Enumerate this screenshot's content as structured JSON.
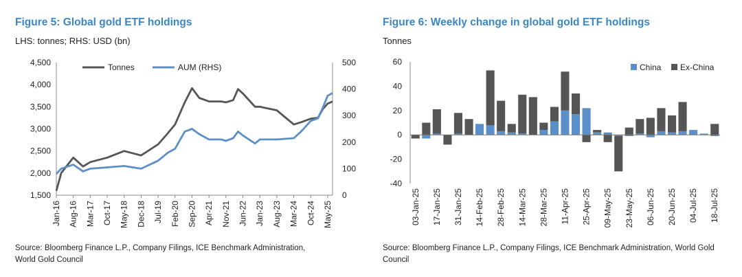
{
  "colors": {
    "title": "#3a87c8",
    "tonnes": "#555555",
    "aum": "#5b8fc9",
    "china": "#5b8fc9",
    "exchina": "#555555",
    "axis": "#888888"
  },
  "figure5": {
    "title": "Figure 5: Global gold ETF holdings",
    "subtitle": "LHS: tonnes; RHS: USD (bn)",
    "source": "Source: Bloomberg Finance L.P., Company Filings, ICE Benchmark Administration, World Gold Council",
    "chart_data": {
      "type": "line",
      "title": "Figure 5: Global gold ETF holdings",
      "x_tick_labels": [
        "Jan-16",
        "Aug-16",
        "Mar-17",
        "Oct-17",
        "May-18",
        "Dec-18",
        "Jul-19",
        "Feb-20",
        "Sep-20",
        "Apr-21",
        "Nov-21",
        "Jun-22",
        "Jan-23",
        "Aug-23",
        "Mar-24",
        "Oct-24",
        "May-25"
      ],
      "y_left": {
        "label": "tonnes",
        "ylim": [
          1500,
          4500
        ],
        "ticks": [
          "1,500",
          "2,000",
          "2,500",
          "3,000",
          "3,500",
          "4,000",
          "4,500"
        ]
      },
      "y_right": {
        "label": "USD (bn)",
        "ylim": [
          0,
          500
        ],
        "ticks": [
          "0",
          "100",
          "200",
          "300",
          "400",
          "500"
        ]
      },
      "legend": [
        "Tonnes",
        "AUM (RHS)"
      ],
      "legend_position": "top-center",
      "series": [
        {
          "name": "Tonnes",
          "axis": "left",
          "x": [
            "Jan-16",
            "Mar-16",
            "Aug-16",
            "Dec-16",
            "Mar-17",
            "Oct-17",
            "May-18",
            "Dec-18",
            "Jul-19",
            "Nov-19",
            "Feb-20",
            "Jun-20",
            "Sep-20",
            "Dec-20",
            "Apr-21",
            "Sep-21",
            "Nov-21",
            "Feb-22",
            "Apr-22",
            "Jun-22",
            "Nov-22",
            "Jan-23",
            "Aug-23",
            "Mar-24",
            "Jun-24",
            "Oct-24",
            "Jan-25",
            "Mar-25",
            "May-25",
            "Jul-25"
          ],
          "values": [
            1600,
            2000,
            2350,
            2150,
            2250,
            2350,
            2500,
            2400,
            2650,
            2900,
            3100,
            3600,
            3920,
            3700,
            3620,
            3620,
            3600,
            3650,
            3900,
            3800,
            3500,
            3500,
            3420,
            3100,
            3150,
            3230,
            3250,
            3450,
            3570,
            3620
          ]
        },
        {
          "name": "AUM (RHS)",
          "axis": "right",
          "x": [
            "Jan-16",
            "Mar-16",
            "Aug-16",
            "Dec-16",
            "Mar-17",
            "Oct-17",
            "May-18",
            "Dec-18",
            "Jul-19",
            "Nov-19",
            "Feb-20",
            "Jun-20",
            "Sep-20",
            "Dec-20",
            "Apr-21",
            "Sep-21",
            "Nov-21",
            "Feb-22",
            "Apr-22",
            "Jun-22",
            "Nov-22",
            "Jan-23",
            "Aug-23",
            "Mar-24",
            "Jun-24",
            "Oct-24",
            "Jan-25",
            "Mar-25",
            "May-25",
            "Jul-25"
          ],
          "values": [
            80,
            100,
            115,
            90,
            100,
            105,
            110,
            100,
            130,
            160,
            175,
            240,
            250,
            230,
            210,
            210,
            205,
            215,
            240,
            225,
            195,
            210,
            210,
            215,
            240,
            280,
            290,
            330,
            375,
            385
          ]
        }
      ]
    }
  },
  "figure6": {
    "title": "Figure 6: Weekly change in global gold ETF holdings",
    "subtitle": "Tonnes",
    "source": "Source: Bloomberg Finance L.P., Company Filings, ICE Benchmark Administration, World Gold Council",
    "chart_data": {
      "type": "bar",
      "stacked": true,
      "title": "Figure 6: Weekly change in global gold ETF holdings",
      "ylabel": "Tonnes",
      "ylim": [
        -40,
        60
      ],
      "y_ticks": [
        "60",
        "40",
        "20",
        "0",
        "-20",
        "-40"
      ],
      "legend": [
        "China",
        "Ex-China"
      ],
      "legend_position": "top-right",
      "x_tick_labels": [
        "03-Jan-25",
        "17-Jan-25",
        "31-Jan-25",
        "14-Feb-25",
        "28-Feb-25",
        "14-Mar-25",
        "28-Mar-25",
        "11-Apr-25",
        "25-Apr-25",
        "09-May-25",
        "23-May-25",
        "06-Jun-25",
        "20-Jun-25",
        "04-Jul-25",
        "18-Jul-25"
      ],
      "categories": [
        "03-Jan-25",
        "10-Jan-25",
        "17-Jan-25",
        "24-Jan-25",
        "31-Jan-25",
        "07-Feb-25",
        "14-Feb-25",
        "21-Feb-25",
        "28-Feb-25",
        "07-Mar-25",
        "14-Mar-25",
        "21-Mar-25",
        "28-Mar-25",
        "04-Apr-25",
        "11-Apr-25",
        "18-Apr-25",
        "25-Apr-25",
        "02-May-25",
        "09-May-25",
        "16-May-25",
        "23-May-25",
        "30-May-25",
        "06-Jun-25",
        "13-Jun-25",
        "20-Jun-25",
        "27-Jun-25",
        "04-Jul-25",
        "11-Jul-25",
        "18-Jul-25"
      ],
      "series": [
        {
          "name": "China",
          "values": [
            0,
            -3,
            1,
            0,
            1,
            0,
            9,
            8,
            3,
            2,
            1,
            0,
            4,
            11,
            20,
            17,
            22,
            2,
            2,
            -1,
            -1,
            1,
            -2,
            3,
            2,
            3,
            4,
            1,
            -1
          ]
        },
        {
          "name": "Ex-China",
          "values": [
            -3,
            10,
            20,
            -8,
            17,
            13,
            0,
            45,
            25,
            7,
            32,
            31,
            6,
            12,
            32,
            17,
            -6,
            2,
            -6,
            -29,
            6,
            12,
            14,
            19,
            14,
            24,
            0,
            0,
            9
          ]
        }
      ]
    }
  }
}
